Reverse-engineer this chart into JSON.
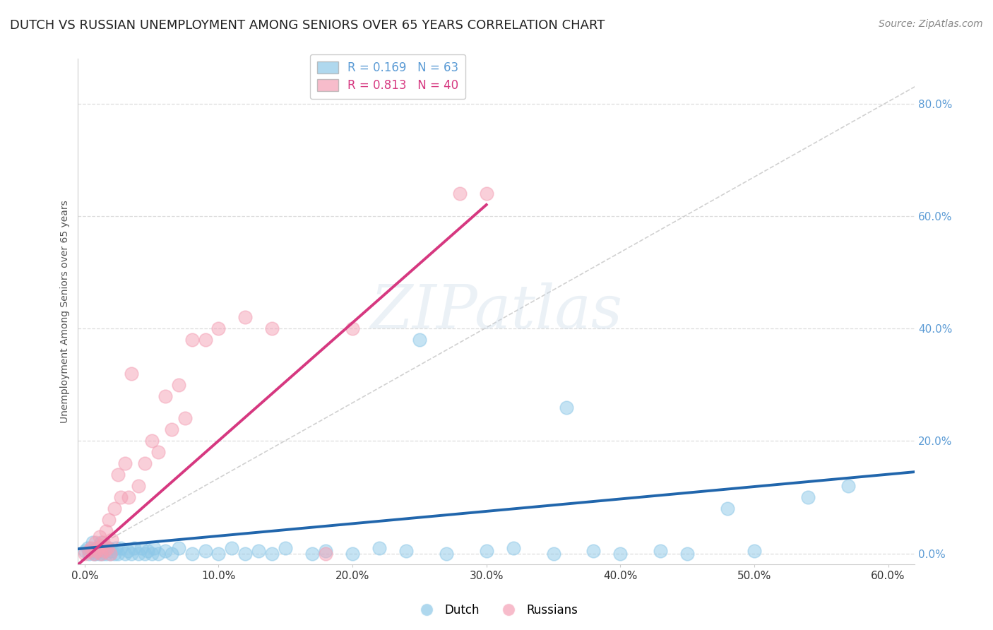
{
  "title": "DUTCH VS RUSSIAN UNEMPLOYMENT AMONG SENIORS OVER 65 YEARS CORRELATION CHART",
  "source": "Source: ZipAtlas.com",
  "xlabel_ticks": [
    "0.0%",
    "10.0%",
    "20.0%",
    "30.0%",
    "40.0%",
    "50.0%",
    "60.0%"
  ],
  "ylabel_ticks": [
    "0.0%",
    "20.0%",
    "40.0%",
    "60.0%",
    "80.0%"
  ],
  "xtick_vals": [
    0.0,
    0.1,
    0.2,
    0.3,
    0.4,
    0.5,
    0.6
  ],
  "ytick_vals": [
    0.0,
    0.2,
    0.4,
    0.6,
    0.8
  ],
  "xlim": [
    -0.005,
    0.62
  ],
  "ylim": [
    -0.02,
    0.88
  ],
  "dutch_scatter": [
    [
      0.0,
      0.005
    ],
    [
      0.002,
      0.01
    ],
    [
      0.003,
      0.0
    ],
    [
      0.005,
      0.005
    ],
    [
      0.006,
      0.02
    ],
    [
      0.007,
      0.0
    ],
    [
      0.008,
      0.0
    ],
    [
      0.009,
      0.01
    ],
    [
      0.01,
      0.005
    ],
    [
      0.011,
      0.0
    ],
    [
      0.012,
      0.02
    ],
    [
      0.013,
      0.0
    ],
    [
      0.014,
      0.01
    ],
    [
      0.015,
      0.005
    ],
    [
      0.016,
      0.0
    ],
    [
      0.018,
      0.01
    ],
    [
      0.019,
      0.0
    ],
    [
      0.02,
      0.005
    ],
    [
      0.022,
      0.0
    ],
    [
      0.023,
      0.01
    ],
    [
      0.025,
      0.0
    ],
    [
      0.027,
      0.01
    ],
    [
      0.03,
      0.0
    ],
    [
      0.032,
      0.005
    ],
    [
      0.035,
      0.0
    ],
    [
      0.037,
      0.01
    ],
    [
      0.04,
      0.0
    ],
    [
      0.042,
      0.01
    ],
    [
      0.045,
      0.0
    ],
    [
      0.047,
      0.005
    ],
    [
      0.05,
      0.0
    ],
    [
      0.052,
      0.01
    ],
    [
      0.055,
      0.0
    ],
    [
      0.06,
      0.005
    ],
    [
      0.065,
      0.0
    ],
    [
      0.07,
      0.01
    ],
    [
      0.08,
      0.0
    ],
    [
      0.09,
      0.005
    ],
    [
      0.1,
      0.0
    ],
    [
      0.11,
      0.01
    ],
    [
      0.12,
      0.0
    ],
    [
      0.13,
      0.005
    ],
    [
      0.14,
      0.0
    ],
    [
      0.15,
      0.01
    ],
    [
      0.17,
      0.0
    ],
    [
      0.18,
      0.005
    ],
    [
      0.2,
      0.0
    ],
    [
      0.22,
      0.01
    ],
    [
      0.24,
      0.005
    ],
    [
      0.25,
      0.38
    ],
    [
      0.27,
      0.0
    ],
    [
      0.3,
      0.005
    ],
    [
      0.32,
      0.01
    ],
    [
      0.35,
      0.0
    ],
    [
      0.36,
      0.26
    ],
    [
      0.38,
      0.005
    ],
    [
      0.4,
      0.0
    ],
    [
      0.43,
      0.005
    ],
    [
      0.45,
      0.0
    ],
    [
      0.48,
      0.08
    ],
    [
      0.5,
      0.005
    ],
    [
      0.54,
      0.1
    ],
    [
      0.57,
      0.12
    ]
  ],
  "russian_scatter": [
    [
      0.0,
      0.0
    ],
    [
      0.003,
      0.005
    ],
    [
      0.005,
      0.01
    ],
    [
      0.007,
      0.0
    ],
    [
      0.008,
      0.02
    ],
    [
      0.009,
      0.005
    ],
    [
      0.01,
      0.01
    ],
    [
      0.011,
      0.03
    ],
    [
      0.012,
      0.0
    ],
    [
      0.013,
      0.015
    ],
    [
      0.014,
      0.02
    ],
    [
      0.015,
      0.005
    ],
    [
      0.016,
      0.04
    ],
    [
      0.017,
      0.01
    ],
    [
      0.018,
      0.06
    ],
    [
      0.019,
      0.0
    ],
    [
      0.02,
      0.025
    ],
    [
      0.022,
      0.08
    ],
    [
      0.025,
      0.14
    ],
    [
      0.027,
      0.1
    ],
    [
      0.03,
      0.16
    ],
    [
      0.033,
      0.1
    ],
    [
      0.035,
      0.32
    ],
    [
      0.04,
      0.12
    ],
    [
      0.045,
      0.16
    ],
    [
      0.05,
      0.2
    ],
    [
      0.055,
      0.18
    ],
    [
      0.06,
      0.28
    ],
    [
      0.065,
      0.22
    ],
    [
      0.07,
      0.3
    ],
    [
      0.075,
      0.24
    ],
    [
      0.08,
      0.38
    ],
    [
      0.09,
      0.38
    ],
    [
      0.1,
      0.4
    ],
    [
      0.12,
      0.42
    ],
    [
      0.14,
      0.4
    ],
    [
      0.18,
      0.0
    ],
    [
      0.2,
      0.4
    ],
    [
      0.28,
      0.64
    ],
    [
      0.3,
      0.64
    ]
  ],
  "dutch_line_x": [
    -0.005,
    0.62
  ],
  "dutch_line_y": [
    0.008,
    0.145
  ],
  "russian_line_x": [
    -0.005,
    0.3
  ],
  "russian_line_y": [
    -0.02,
    0.62
  ],
  "ref_line_x": [
    0.0,
    0.62
  ],
  "ref_line_y": [
    0.0,
    0.83
  ],
  "dutch_color": "#8dc8e8",
  "russian_color": "#f4a0b5",
  "dutch_line_color": "#2166ac",
  "russian_line_color": "#d63880",
  "ref_line_color": "#cccccc",
  "background_color": "#ffffff",
  "watermark_text": "ZIPatlas",
  "title_fontsize": 13,
  "legend_r1": "R = 0.169   N = 63",
  "legend_r2": "R = 0.813   N = 40",
  "legend_color1": "#5b9bd5",
  "legend_color2": "#d63880"
}
